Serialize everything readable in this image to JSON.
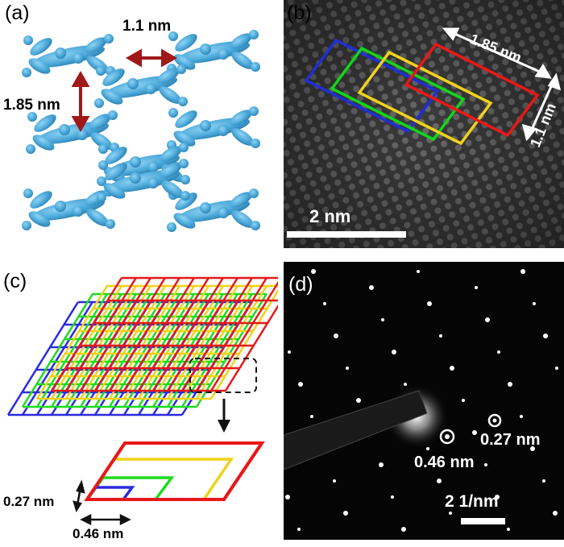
{
  "figure": {
    "panels": [
      {
        "id": "a",
        "label": "(a)",
        "annotations": {
          "horizontal_spacing": "1.1 nm",
          "vertical_spacing": "1.85 nm"
        },
        "colors": {
          "molecule": "#4aa8d8",
          "arrow": "#a01818"
        }
      },
      {
        "id": "b",
        "label": "(b)",
        "annotations": {
          "long_edge": "1.85 nm",
          "short_edge": "1.1 nm",
          "scale_bar": "2 nm"
        },
        "rectangle_colors": [
          "#1f2fd6",
          "#12d61a",
          "#f2d21b",
          "#e81818"
        ]
      },
      {
        "id": "c",
        "label": "(c)",
        "annotations": {
          "spacing_short": "0.27 nm",
          "spacing_long": "0.46 nm"
        },
        "grid_colors": [
          "#2b2be0",
          "#1edb1e",
          "#f0d21a",
          "#e81818"
        ]
      },
      {
        "id": "d",
        "label": "(d)",
        "annotations": {
          "spot_outer": "0.27 nm",
          "spot_inner": "0.46 nm",
          "scale_bar": "2 1/nm"
        }
      }
    ]
  }
}
